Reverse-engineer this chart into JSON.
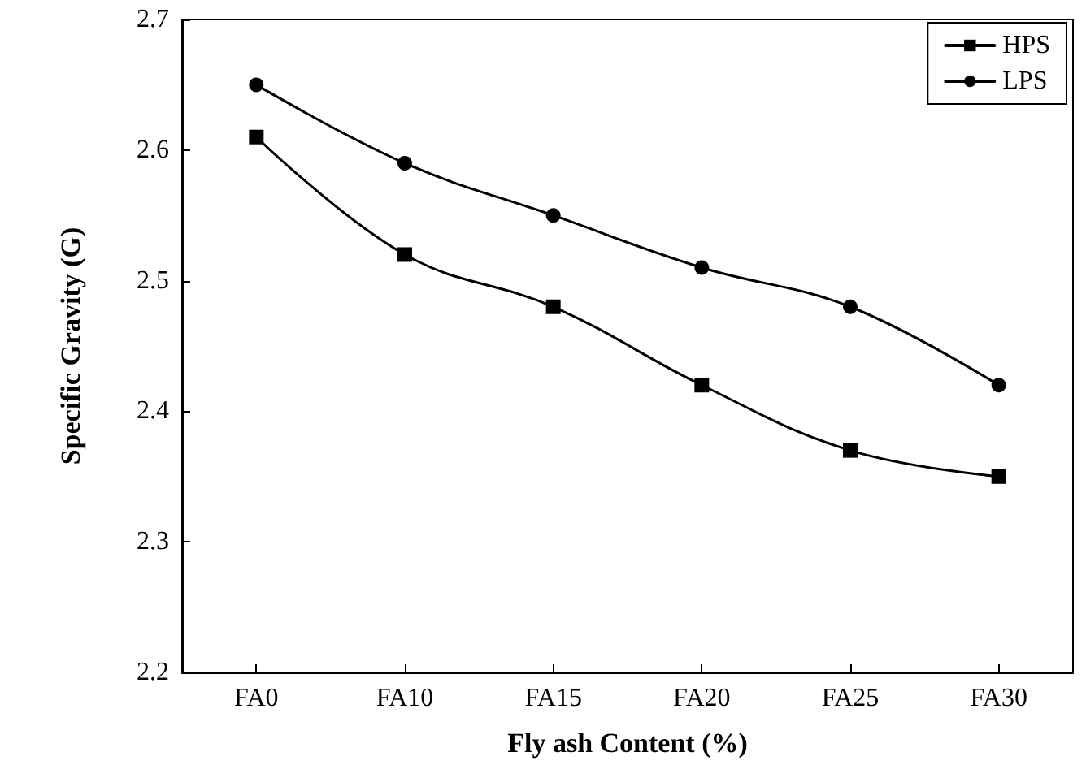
{
  "chart_data": {
    "type": "line",
    "xlabel": "Fly ash Content (%)",
    "ylabel": "Specific Gravity (G)",
    "categories": [
      "FA0",
      "FA10",
      "FA15",
      "FA20",
      "FA25",
      "FA30"
    ],
    "series": [
      {
        "name": "HPS",
        "color": "#000000",
        "marker": "square",
        "values": [
          2.61,
          2.52,
          2.48,
          2.42,
          2.37,
          2.35
        ]
      },
      {
        "name": "LPS",
        "color": "#000000",
        "marker": "circle",
        "values": [
          2.65,
          2.59,
          2.55,
          2.51,
          2.48,
          2.42
        ]
      }
    ],
    "ylim": [
      2.2,
      2.7
    ],
    "yticks": [
      2.2,
      2.3,
      2.4,
      2.5,
      2.6,
      2.7
    ],
    "grid": false,
    "legend": "top right",
    "line_style": "solid"
  }
}
